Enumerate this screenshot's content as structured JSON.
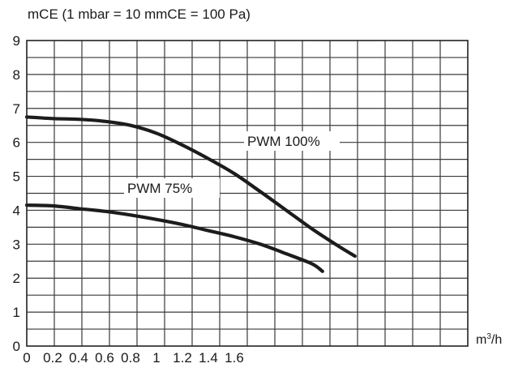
{
  "chart_data": {
    "type": "line",
    "ylabel": "mCE (1 mbar = 10 mmCE = 100 Pa)",
    "xlabel_base": "m",
    "xlabel_sup": "3",
    "xlabel_tail": "/h",
    "ylim": [
      0,
      9
    ],
    "xlim": [
      0,
      3.4
    ],
    "grid": true,
    "x_tick_labels": [
      {
        "v": 0,
        "label": "0"
      },
      {
        "v": 0.2,
        "label": "0.2"
      },
      {
        "v": 0.4,
        "label": "0.4"
      },
      {
        "v": 0.6,
        "label": "0.6"
      },
      {
        "v": 0.8,
        "label": "0.8"
      },
      {
        "v": 1.0,
        "label": "1"
      },
      {
        "v": 1.2,
        "label": "1.2"
      },
      {
        "v": 1.4,
        "label": "1.4"
      },
      {
        "v": 1.6,
        "label": "1.6"
      }
    ],
    "y_ticks": [
      0,
      1,
      2,
      3,
      4,
      5,
      6,
      7,
      8,
      9
    ],
    "series": [
      {
        "name": "PWM 100%",
        "points": [
          [
            0,
            6.75
          ],
          [
            0.2,
            6.7
          ],
          [
            0.4,
            6.68
          ],
          [
            0.6,
            6.62
          ],
          [
            0.8,
            6.5
          ],
          [
            1.0,
            6.27
          ],
          [
            1.2,
            5.92
          ],
          [
            1.4,
            5.52
          ],
          [
            1.6,
            5.08
          ],
          [
            1.8,
            4.55
          ],
          [
            2.0,
            4.0
          ],
          [
            2.2,
            3.45
          ],
          [
            2.4,
            2.95
          ],
          [
            2.53,
            2.65
          ]
        ]
      },
      {
        "name": "PWM 75%",
        "points": [
          [
            0,
            4.15
          ],
          [
            0.2,
            4.13
          ],
          [
            0.4,
            4.05
          ],
          [
            0.6,
            3.97
          ],
          [
            0.8,
            3.86
          ],
          [
            1.0,
            3.73
          ],
          [
            1.2,
            3.58
          ],
          [
            1.4,
            3.4
          ],
          [
            1.6,
            3.22
          ],
          [
            1.8,
            3.0
          ],
          [
            2.0,
            2.72
          ],
          [
            2.2,
            2.42
          ],
          [
            2.28,
            2.2
          ]
        ]
      }
    ]
  }
}
